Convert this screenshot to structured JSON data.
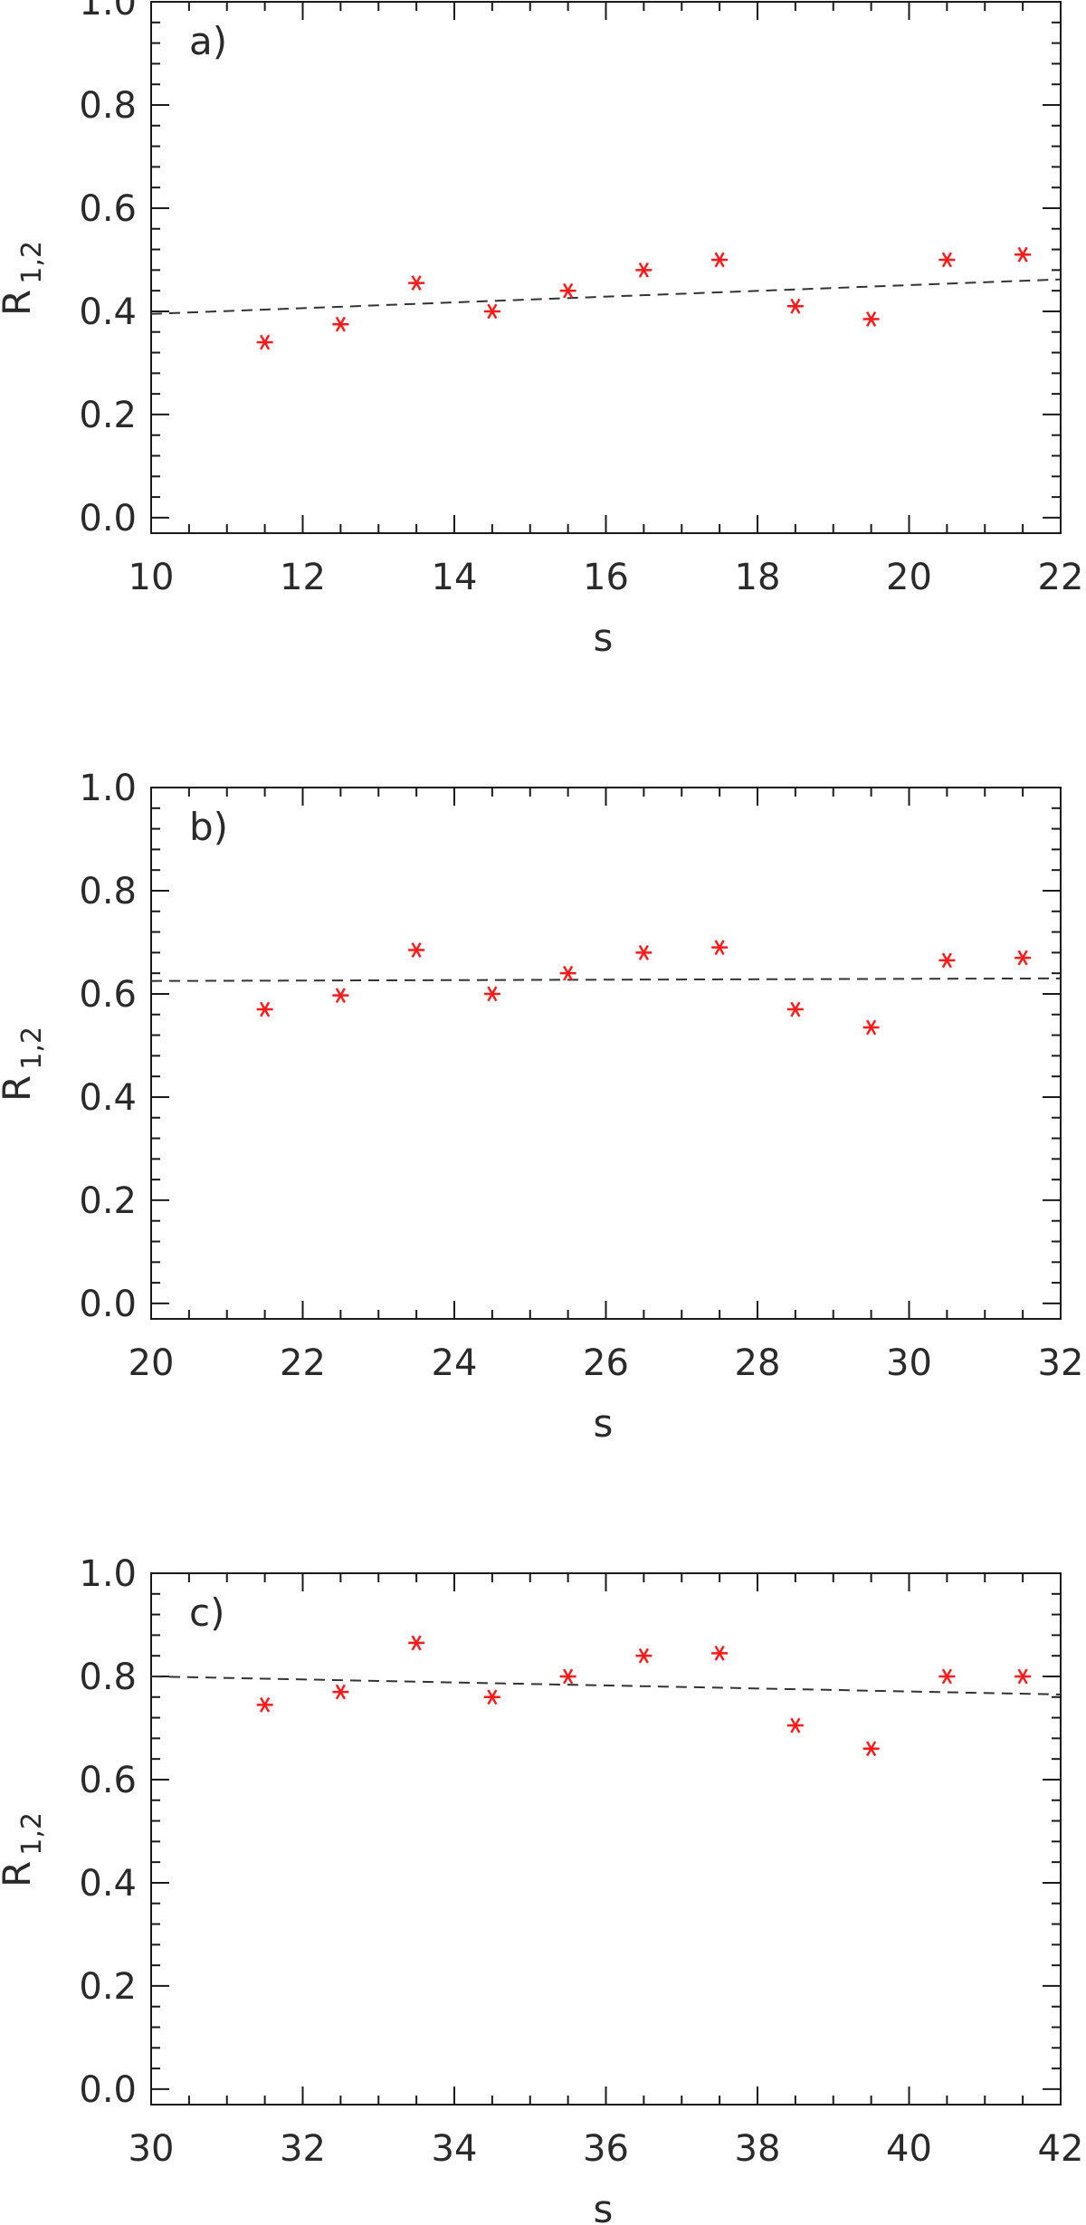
{
  "chart_data": [
    {
      "type": "scatter",
      "panel_label": "a)",
      "xlabel": "s",
      "ylabel": {
        "main": "R",
        "sub": "1,2"
      },
      "xlim": [
        10,
        22
      ],
      "ylim": [
        -0.03,
        1.0
      ],
      "xticks": [
        "10",
        "12",
        "14",
        "16",
        "18",
        "20",
        "22"
      ],
      "yticks": [
        "0.0",
        "0.2",
        "0.4",
        "0.6",
        "0.8",
        "1.0"
      ],
      "marker": "asterisk",
      "marker_color": "#ff1a1a",
      "x": [
        11.5,
        12.5,
        13.5,
        14.5,
        15.5,
        16.5,
        17.5,
        18.5,
        19.5,
        20.5,
        21.5
      ],
      "y": [
        0.34,
        0.375,
        0.455,
        0.4,
        0.44,
        0.48,
        0.5,
        0.41,
        0.385,
        0.5,
        0.51
      ],
      "fit_line": {
        "style": "dashed",
        "x": [
          10,
          22
        ],
        "y": [
          0.395,
          0.462
        ]
      }
    },
    {
      "type": "scatter",
      "panel_label": "b)",
      "xlabel": "s",
      "ylabel": {
        "main": "R",
        "sub": "1,2"
      },
      "xlim": [
        20,
        32
      ],
      "ylim": [
        -0.03,
        1.0
      ],
      "xticks": [
        "20",
        "22",
        "24",
        "26",
        "28",
        "30",
        "32"
      ],
      "yticks": [
        "0.0",
        "0.2",
        "0.4",
        "0.6",
        "0.8",
        "1.0"
      ],
      "marker": "asterisk",
      "marker_color": "#ff1a1a",
      "x": [
        21.5,
        22.5,
        23.5,
        24.5,
        25.5,
        26.5,
        27.5,
        28.5,
        29.5,
        30.5,
        31.5
      ],
      "y": [
        0.57,
        0.597,
        0.685,
        0.6,
        0.64,
        0.68,
        0.69,
        0.57,
        0.535,
        0.665,
        0.67
      ],
      "fit_line": {
        "style": "dashed",
        "x": [
          20,
          32
        ],
        "y": [
          0.625,
          0.63
        ]
      }
    },
    {
      "type": "scatter",
      "panel_label": "c)",
      "xlabel": "s",
      "ylabel": {
        "main": "R",
        "sub": "1,2"
      },
      "xlim": [
        30,
        42
      ],
      "ylim": [
        -0.03,
        1.0
      ],
      "xticks": [
        "30",
        "32",
        "34",
        "36",
        "38",
        "40",
        "42"
      ],
      "yticks": [
        "0.0",
        "0.2",
        "0.4",
        "0.6",
        "0.8",
        "1.0"
      ],
      "marker": "asterisk",
      "marker_color": "#ff1a1a",
      "x": [
        31.5,
        32.5,
        33.5,
        34.5,
        35.5,
        36.5,
        37.5,
        38.5,
        39.5,
        40.5,
        41.5
      ],
      "y": [
        0.745,
        0.77,
        0.865,
        0.76,
        0.8,
        0.84,
        0.845,
        0.705,
        0.66,
        0.8,
        0.8
      ],
      "fit_line": {
        "style": "dashed",
        "x": [
          30,
          42
        ],
        "y": [
          0.8,
          0.765
        ]
      }
    }
  ]
}
